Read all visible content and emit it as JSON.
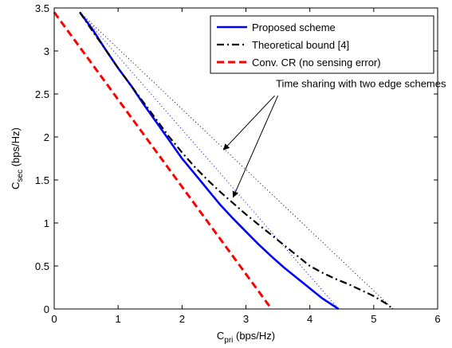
{
  "chart_data": {
    "type": "line",
    "title": "",
    "xlabel": {
      "main": "C",
      "sub": "pri",
      "unit": " (bps/Hz)"
    },
    "ylabel": {
      "main": "C",
      "sub": "sec",
      "unit": " (bps/Hz)"
    },
    "xlim": [
      0,
      6
    ],
    "ylim": [
      0,
      3.5
    ],
    "xticks": [
      0,
      1,
      2,
      3,
      4,
      5,
      6
    ],
    "yticks": [
      0,
      0.5,
      1,
      1.5,
      2,
      2.5,
      3,
      3.5
    ],
    "xtick_labels": [
      "0",
      "1",
      "2",
      "3",
      "4",
      "5",
      "6"
    ],
    "ytick_labels": [
      "0",
      "0.5",
      "1",
      "1.5",
      "2",
      "2.5",
      "3",
      "3.5"
    ],
    "grid": false,
    "legend_position": "top-right",
    "series": [
      {
        "name": "Proposed scheme",
        "color": "#0000ff",
        "style": "solid",
        "in_legend": true,
        "x": [
          0.4,
          0.6,
          0.8,
          1.0,
          1.2,
          1.4,
          1.6,
          1.8,
          2.0,
          2.2,
          2.4,
          2.6,
          2.8,
          3.0,
          3.2,
          3.4,
          3.6,
          3.8,
          4.0,
          4.2,
          4.45
        ],
        "y": [
          3.45,
          3.25,
          3.02,
          2.8,
          2.6,
          2.38,
          2.17,
          1.96,
          1.75,
          1.57,
          1.39,
          1.21,
          1.05,
          0.9,
          0.75,
          0.61,
          0.48,
          0.36,
          0.24,
          0.12,
          0.0
        ]
      },
      {
        "name": "Theoretical bound [4]",
        "color": "#000000",
        "style": "dashdot",
        "in_legend": true,
        "x": [
          0.4,
          0.6,
          0.8,
          1.0,
          1.2,
          1.4,
          1.6,
          1.8,
          2.0,
          2.2,
          2.4,
          2.6,
          2.8,
          3.0,
          3.2,
          3.4,
          3.6,
          3.8,
          4.0,
          4.2,
          4.4,
          4.6,
          4.8,
          5.0,
          5.2,
          5.3
        ],
        "y": [
          3.45,
          3.23,
          3.02,
          2.8,
          2.6,
          2.4,
          2.2,
          2.0,
          1.82,
          1.65,
          1.5,
          1.36,
          1.23,
          1.1,
          0.98,
          0.86,
          0.74,
          0.62,
          0.5,
          0.42,
          0.35,
          0.29,
          0.22,
          0.15,
          0.06,
          0.0
        ]
      },
      {
        "name": "Conv. CR (no sensing error)",
        "color": "#ff0000",
        "style": "dashed",
        "in_legend": true,
        "x": [
          0.0,
          3.4
        ],
        "y": [
          3.45,
          0.0
        ]
      },
      {
        "name": "",
        "color": "#0000ff",
        "style": "dotted",
        "in_legend": false,
        "x": [
          0.4,
          4.45
        ],
        "y": [
          3.45,
          0.0
        ]
      },
      {
        "name": "",
        "color": "#000000",
        "style": "dotted",
        "in_legend": false,
        "x": [
          0.4,
          5.3
        ],
        "y": [
          3.45,
          0.0
        ]
      }
    ],
    "annotations": [
      {
        "text": "Time sharing with two edge schemes",
        "text_at": [
          4.8,
          2.58
        ],
        "arrows": [
          {
            "from": [
              3.45,
              2.48
            ],
            "to": [
              2.65,
              1.85
            ]
          },
          {
            "from": [
              3.5,
              2.48
            ],
            "to": [
              2.8,
              1.3
            ]
          }
        ]
      }
    ]
  }
}
